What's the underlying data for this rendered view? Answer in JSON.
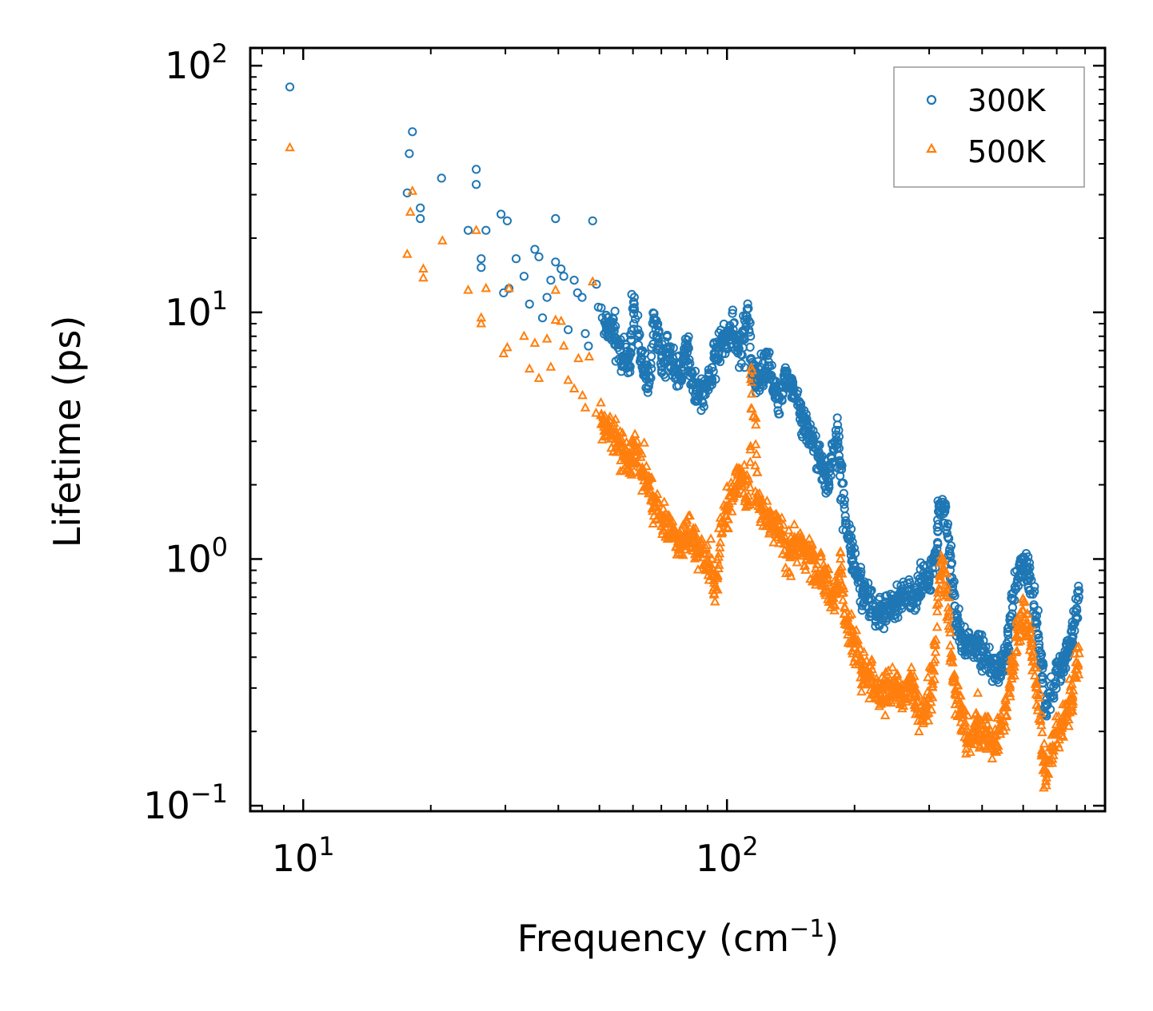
{
  "chart_data": {
    "type": "scatter",
    "title": "",
    "xlabel": "Frequency (cm",
    "xlabel_sup": "−1",
    "xlabel_end": ")",
    "ylabel": "Lifetime (ps)",
    "xscale": "log",
    "yscale": "log",
    "xlim": [
      7.5,
      780
    ],
    "ylim": [
      0.095,
      118
    ],
    "x_ticks": [
      {
        "base": "10",
        "exp": "1",
        "value": 10
      },
      {
        "base": "10",
        "exp": "2",
        "value": 100
      }
    ],
    "y_ticks": [
      {
        "base": "10",
        "exp": "−1",
        "value": 0.1
      },
      {
        "base": "10",
        "exp": "0",
        "value": 1
      },
      {
        "base": "10",
        "exp": "1",
        "value": 10
      },
      {
        "base": "10",
        "exp": "2",
        "value": 100
      }
    ],
    "legend_position": "top-right",
    "series": [
      {
        "name": "300K",
        "marker": "circle",
        "color": "#1f77b4",
        "points": [
          [
            9.3,
            82
          ],
          [
            17.8,
            44
          ],
          [
            18.1,
            54
          ],
          [
            17.6,
            30.5
          ],
          [
            18.9,
            26.5
          ],
          [
            18.9,
            24
          ],
          [
            21.2,
            35
          ],
          [
            24.5,
            21.5
          ],
          [
            25.6,
            38
          ],
          [
            25.6,
            33
          ],
          [
            26.3,
            16.5
          ],
          [
            26.3,
            15.2
          ],
          [
            27,
            21.5
          ],
          [
            29.3,
            25
          ],
          [
            30.3,
            23.5
          ],
          [
            29.7,
            12
          ],
          [
            30.6,
            12.5
          ],
          [
            31.8,
            16.5
          ],
          [
            33.2,
            14
          ],
          [
            34.2,
            10.8
          ],
          [
            35.2,
            18
          ],
          [
            36,
            16.8
          ],
          [
            36.7,
            9.5
          ],
          [
            37.6,
            11.5
          ],
          [
            38.4,
            13.5
          ],
          [
            39.4,
            24
          ],
          [
            39.4,
            16
          ],
          [
            40.6,
            15
          ],
          [
            41.2,
            14
          ],
          [
            42.2,
            8.5
          ],
          [
            43.6,
            13.5
          ],
          [
            44.4,
            12
          ],
          [
            45.5,
            11.5
          ],
          [
            46.3,
            8.2
          ],
          [
            47.1,
            7.3
          ],
          [
            48.2,
            23.5
          ],
          [
            49.2,
            13
          ],
          [
            49.7,
            10.5
          ],
          [
            50.8,
            9.5
          ],
          [
            52,
            9
          ],
          [
            53.2,
            8.7
          ],
          [
            54.2,
            8.4
          ],
          [
            55.3,
            7.2
          ],
          [
            57.2,
            6.5
          ],
          [
            59.1,
            6
          ],
          [
            60.2,
            11
          ],
          [
            61.6,
            8.5
          ],
          [
            63.4,
            5.8
          ],
          [
            65.7,
            5.5
          ],
          [
            67.7,
            9.3
          ],
          [
            69.8,
            6.2
          ],
          [
            72.6,
            7.1
          ],
          [
            75.2,
            5.8
          ],
          [
            77.8,
            5.5
          ],
          [
            80.1,
            7.2
          ],
          [
            82.8,
            5.1
          ],
          [
            85.1,
            4.8
          ],
          [
            88,
            4.6
          ],
          [
            90.9,
            5.3
          ],
          [
            94,
            6.8
          ],
          [
            96.9,
            7.5
          ],
          [
            99,
            7.8
          ],
          [
            101.1,
            8
          ],
          [
            103.5,
            8.5
          ],
          [
            105.9,
            7.5
          ],
          [
            108.2,
            6.2
          ],
          [
            111.5,
            10.3
          ],
          [
            114.8,
            5.6
          ],
          [
            118.1,
            5.3
          ],
          [
            121.5,
            5.6
          ],
          [
            125.4,
            6.3
          ],
          [
            129.3,
            5
          ],
          [
            133.2,
            4.5
          ],
          [
            137.9,
            5.6
          ],
          [
            142.5,
            4.9
          ],
          [
            146.8,
            4.2
          ],
          [
            151.2,
            3.6
          ],
          [
            155.8,
            3.3
          ],
          [
            160.1,
            3
          ],
          [
            164.6,
            2.6
          ],
          [
            169.3,
            2.3
          ],
          [
            174.1,
            2
          ],
          [
            179,
            2.8
          ],
          [
            182.6,
            3
          ],
          [
            185.5,
            2.4
          ],
          [
            189.4,
            1.6
          ],
          [
            193.3,
            1.25
          ],
          [
            198.2,
            1
          ],
          [
            203.6,
            0.85
          ],
          [
            209.2,
            0.75
          ],
          [
            215.4,
            0.68
          ],
          [
            223.5,
            0.64
          ],
          [
            233,
            0.62
          ],
          [
            243.5,
            0.63
          ],
          [
            255.1,
            0.68
          ],
          [
            267.3,
            0.7
          ],
          [
            279.7,
            0.72
          ],
          [
            289.6,
            0.85
          ],
          [
            299.6,
            0.8
          ],
          [
            309.5,
            1.05
          ],
          [
            314.5,
            1.3
          ],
          [
            318.6,
            1.55
          ],
          [
            322.6,
            1.7
          ],
          [
            326.6,
            1.6
          ],
          [
            330.9,
            1.35
          ],
          [
            336.1,
            1.05
          ],
          [
            341.6,
            0.72
          ],
          [
            348.6,
            0.55
          ],
          [
            356.1,
            0.48
          ],
          [
            365.8,
            0.45
          ],
          [
            376.9,
            0.43
          ],
          [
            388.8,
            0.45
          ],
          [
            399.3,
            0.42
          ],
          [
            416.5,
            0.38
          ],
          [
            436.8,
            0.35
          ],
          [
            457.2,
            0.42
          ],
          [
            470.9,
            0.6
          ],
          [
            483.5,
            0.8
          ],
          [
            494.2,
            0.95
          ],
          [
            505.6,
            0.92
          ],
          [
            514.9,
            0.9
          ],
          [
            527,
            0.72
          ],
          [
            539.1,
            0.55
          ],
          [
            551.2,
            0.38
          ],
          [
            562.1,
            0.25
          ],
          [
            653.3,
            0.48
          ],
          [
            662,
            0.55
          ],
          [
            669.5,
            0.62
          ],
          [
            676.6,
            0.7
          ]
        ]
      },
      {
        "name": "500K",
        "marker": "triangle",
        "color": "#ff7f0e",
        "points": [
          [
            9.3,
            46.5
          ],
          [
            17.6,
            17.2
          ],
          [
            18.1,
            31
          ],
          [
            17.9,
            25.5
          ],
          [
            19.2,
            15
          ],
          [
            19.2,
            13.8
          ],
          [
            21.3,
            19.5
          ],
          [
            24.5,
            12.3
          ],
          [
            25.6,
            21.5
          ],
          [
            26.3,
            9.5
          ],
          [
            26.3,
            9
          ],
          [
            27,
            12.5
          ],
          [
            29.7,
            6.8
          ],
          [
            30.3,
            7.2
          ],
          [
            30.6,
            12.5
          ],
          [
            33.2,
            8
          ],
          [
            34.2,
            5.9
          ],
          [
            35.2,
            7.5
          ],
          [
            36,
            5.4
          ],
          [
            37.6,
            7.8
          ],
          [
            38.4,
            6
          ],
          [
            39.4,
            9.3
          ],
          [
            39.4,
            12.3
          ],
          [
            40.6,
            9.2
          ],
          [
            41.2,
            7.3
          ],
          [
            42.2,
            5.3
          ],
          [
            43.6,
            4.9
          ],
          [
            44.6,
            6.5
          ],
          [
            45.6,
            4.6
          ],
          [
            46.3,
            4.1
          ],
          [
            47.3,
            6.6
          ],
          [
            48.2,
            13.3
          ],
          [
            49.1,
            3.9
          ],
          [
            50.4,
            4.3
          ],
          [
            51.3,
            3.3
          ],
          [
            52.9,
            3.4
          ],
          [
            54.2,
            3.2
          ],
          [
            55.5,
            3
          ],
          [
            57.3,
            2.6
          ],
          [
            59.1,
            2.5
          ],
          [
            61.1,
            2.8
          ],
          [
            63.1,
            2.3
          ],
          [
            65.6,
            1.9
          ],
          [
            67.4,
            1.7
          ],
          [
            69.6,
            1.5
          ],
          [
            71.8,
            1.4
          ],
          [
            74.7,
            1.3
          ],
          [
            77.1,
            1.15
          ],
          [
            80.1,
            1.25
          ],
          [
            83.3,
            1.2
          ],
          [
            85.5,
            1.1
          ],
          [
            88.2,
            1.05
          ],
          [
            91.3,
            0.95
          ],
          [
            94.2,
            0.75
          ],
          [
            96.9,
            1.4
          ],
          [
            99.9,
            1.6
          ],
          [
            102.1,
            1.8
          ],
          [
            106.1,
            2.2
          ],
          [
            109.2,
            2.1
          ],
          [
            112.4,
            1.8
          ],
          [
            114.6,
            5.8
          ],
          [
            118.1,
            1.7
          ],
          [
            121.5,
            1.6
          ],
          [
            125.2,
            1.5
          ],
          [
            129.3,
            1.4
          ],
          [
            133.5,
            1.3
          ],
          [
            137.4,
            1.15
          ],
          [
            141.1,
            1.05
          ],
          [
            145.2,
            1.2
          ],
          [
            149.3,
            1.15
          ],
          [
            153.8,
            1.05
          ],
          [
            158.5,
            1
          ],
          [
            163.2,
            0.95
          ],
          [
            167.9,
            0.88
          ],
          [
            172.4,
            0.8
          ],
          [
            177.2,
            0.72
          ],
          [
            181.6,
            0.75
          ],
          [
            185.3,
            1
          ],
          [
            189.2,
            0.6
          ],
          [
            192.9,
            0.52
          ],
          [
            197.3,
            0.46
          ],
          [
            202.8,
            0.42
          ],
          [
            208.9,
            0.36
          ],
          [
            215.3,
            0.34
          ],
          [
            222.8,
            0.3
          ],
          [
            231.4,
            0.28
          ],
          [
            239.2,
            0.3
          ],
          [
            247.9,
            0.32
          ],
          [
            256.6,
            0.28
          ],
          [
            264.3,
            0.3
          ],
          [
            272.2,
            0.33
          ],
          [
            280.1,
            0.25
          ],
          [
            288.6,
            0.22
          ],
          [
            296.2,
            0.26
          ],
          [
            304.9,
            0.32
          ],
          [
            310.2,
            0.45
          ],
          [
            314.5,
            0.7
          ],
          [
            318.2,
            0.85
          ],
          [
            321.5,
            0.98
          ],
          [
            325.2,
            0.9
          ],
          [
            330.3,
            0.75
          ],
          [
            335.2,
            0.52
          ],
          [
            340.9,
            0.38
          ],
          [
            347,
            0.28
          ],
          [
            355,
            0.24
          ],
          [
            365.1,
            0.2
          ],
          [
            375.8,
            0.18
          ],
          [
            389.5,
            0.22
          ],
          [
            400.1,
            0.19
          ],
          [
            411.5,
            0.2
          ],
          [
            425,
            0.17
          ],
          [
            441.6,
            0.2
          ],
          [
            457.2,
            0.25
          ],
          [
            470.1,
            0.35
          ],
          [
            483.4,
            0.48
          ],
          [
            494.2,
            0.55
          ],
          [
            505.1,
            0.58
          ],
          [
            514.5,
            0.52
          ],
          [
            527.1,
            0.42
          ],
          [
            538.4,
            0.3
          ],
          [
            548.9,
            0.22
          ],
          [
            557.7,
            0.16
          ],
          [
            563.3,
            0.14
          ],
          [
            653.9,
            0.28
          ],
          [
            660.1,
            0.33
          ],
          [
            668.3,
            0.38
          ],
          [
            675.5,
            0.44
          ]
        ]
      }
    ]
  }
}
